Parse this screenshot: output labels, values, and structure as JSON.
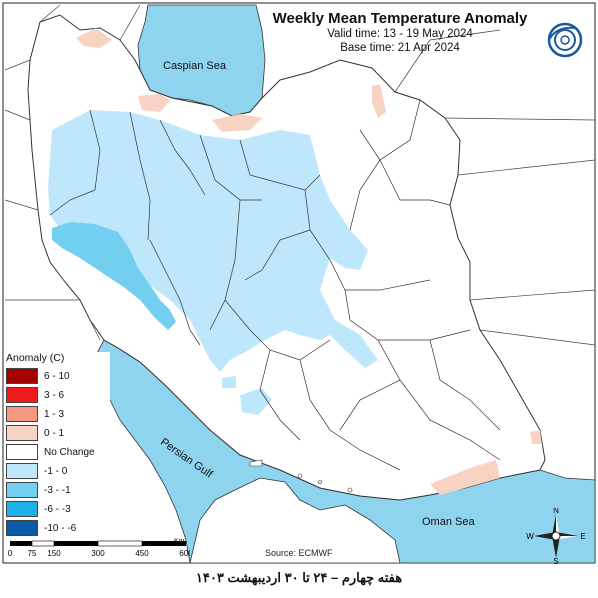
{
  "title": "Weekly Mean Temperature Anomaly",
  "valid_time": "Valid time: 13 - 19 May 2024",
  "base_time": "Base time: 21 Apr 2024",
  "water_labels": {
    "caspian": "Caspian Sea",
    "persian_gulf": "Persian Gulf",
    "oman_sea": "Oman Sea"
  },
  "legend": {
    "title": "Anomaly (C)",
    "items": [
      {
        "label": "6 - 10",
        "color": "#a50000"
      },
      {
        "label": "3 - 6",
        "color": "#ee1b1b"
      },
      {
        "label": "1 - 3",
        "color": "#f59a80"
      },
      {
        "label": "0 - 1",
        "color": "#f8d3c4"
      },
      {
        "label": "No Change",
        "color": "#ffffff"
      },
      {
        "label": "-1 - 0",
        "color": "#bee7fb"
      },
      {
        "label": "-3 - -1",
        "color": "#72cff0"
      },
      {
        "label": "-6 - -3",
        "color": "#1fb0ea"
      },
      {
        "label": "-10 - -6",
        "color": "#0b5aa8"
      }
    ]
  },
  "scale": {
    "ticks": [
      "0",
      "75",
      "150",
      "300",
      "450",
      "600"
    ],
    "unit": "Km"
  },
  "source": "Source: ECMWF",
  "caption": "هفته چهارم – ۲۴ تا ۳۰ اردیبهشت ۱۴۰۳",
  "compass": {
    "n": "N",
    "s": "S",
    "e": "E",
    "w": "W"
  },
  "colors": {
    "sea": "#8fd4ee",
    "warm_light": "#f8d3c4",
    "cool_light": "#bee7fb",
    "cool_mid": "#72cff0"
  }
}
